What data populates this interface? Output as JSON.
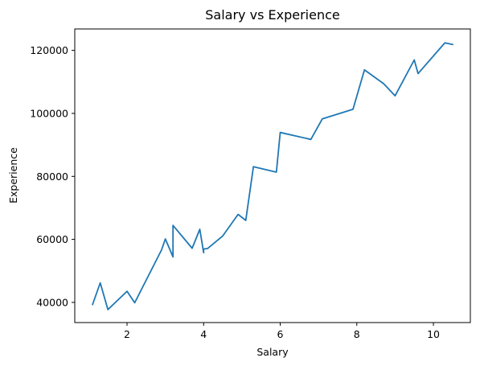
{
  "chart_data": {
    "type": "line",
    "title": "Salary vs Experience",
    "xlabel": "Salary",
    "ylabel": "Experience",
    "xlim": [
      0.635,
      10.965
    ],
    "ylim": [
      33600,
      126800
    ],
    "xticks": [
      2,
      4,
      6,
      8,
      10
    ],
    "yticks": [
      40000,
      60000,
      80000,
      100000,
      120000
    ],
    "xtick_labels": [
      "2",
      "4",
      "6",
      "8",
      "10"
    ],
    "ytick_labels": [
      "40000",
      "60000",
      "80000",
      "100000",
      "120000"
    ],
    "grid": false,
    "colors": {
      "series": "#1f77b4",
      "axes": "#000000",
      "background": "#ffffff"
    },
    "series": [
      {
        "x": [
          1.1,
          1.3,
          1.5,
          2.0,
          2.2,
          2.9,
          3.0,
          3.2,
          3.2,
          3.7,
          3.9,
          4.0,
          4.0,
          4.1,
          4.5,
          4.9,
          5.1,
          5.3,
          5.9,
          6.0,
          6.8,
          7.1,
          7.9,
          8.2,
          8.7,
          9.0,
          9.5,
          9.6,
          10.3,
          10.5
        ],
        "y": [
          39343,
          46205,
          37731,
          43525,
          39891,
          56642,
          60150,
          54445,
          64445,
          57189,
          63218,
          55794,
          56957,
          57081,
          61111,
          67938,
          66029,
          83088,
          81363,
          93940,
          91738,
          98273,
          101302,
          113812,
          109431,
          105582,
          116969,
          112635,
          122391,
          121872
        ]
      }
    ]
  }
}
